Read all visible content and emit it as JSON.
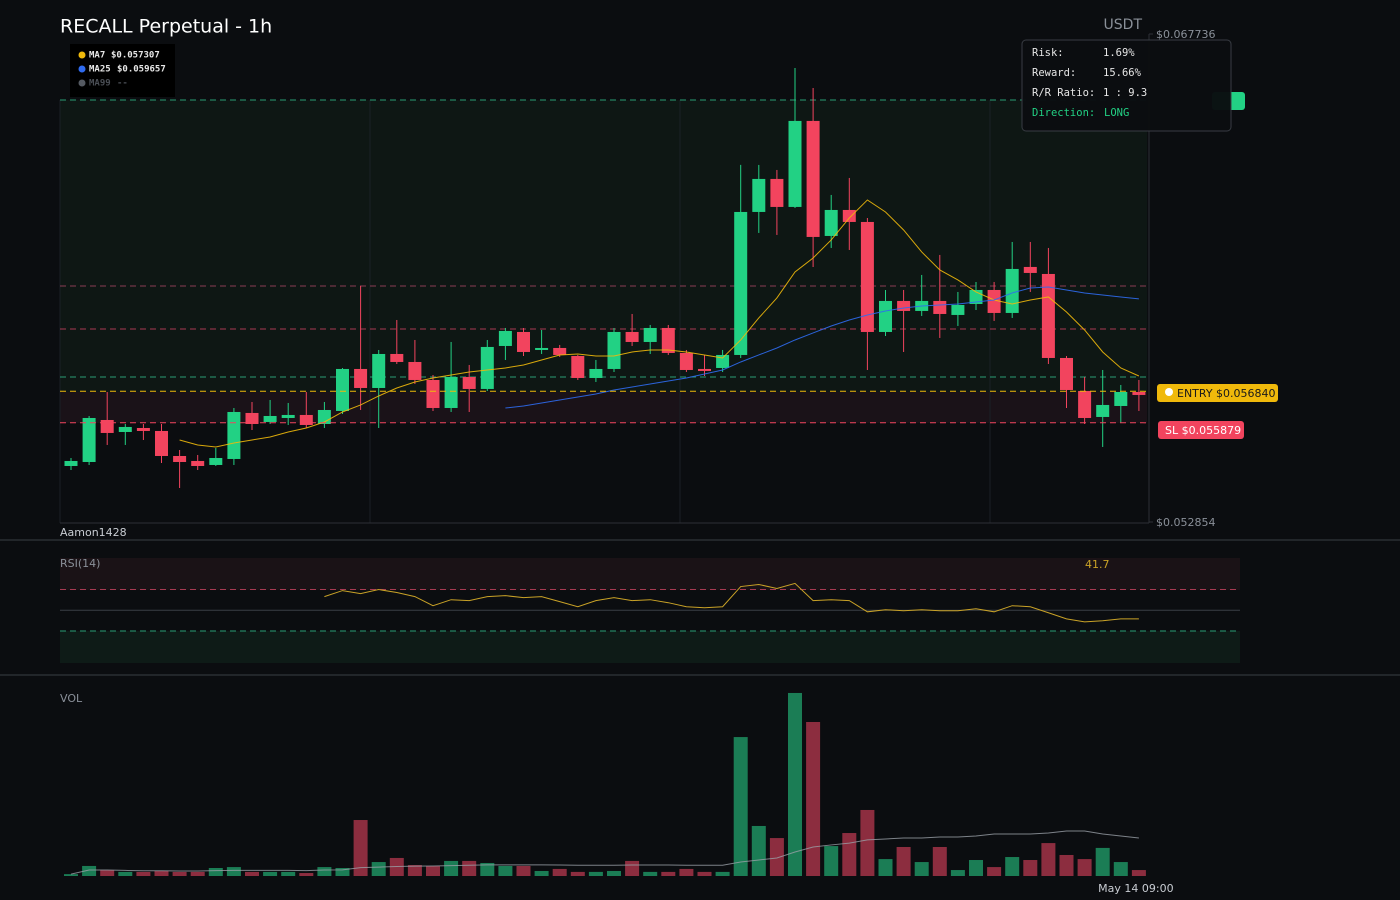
{
  "chart_data": [
    {
      "type": "candlestick",
      "title": "RECALL Perpetual - 1h",
      "unit": "USDT",
      "watermark": "Aamon1428",
      "ylim": [
        0.052854,
        0.067736
      ],
      "yticks": [
        {
          "value": 0.067736,
          "label": "$0.067736"
        },
        {
          "value": 0.052854,
          "label": "$0.052854"
        }
      ],
      "up_color": "#22d184",
      "down_color": "#f2445e",
      "open": [
        0.054562,
        0.054684,
        0.055965,
        0.055599,
        0.055721,
        0.05563,
        0.054867,
        0.054715,
        0.054593,
        0.054776,
        0.056179,
        0.055904,
        0.056026,
        0.056118,
        0.055843,
        0.05624,
        0.057521,
        0.056941,
        0.057978,
        0.057734,
        0.057185,
        0.056331,
        0.057277,
        0.056911,
        0.058222,
        0.058649,
        0.0581,
        0.058161,
        0.057917,
        0.057246,
        0.057521,
        0.058649,
        0.058344,
        0.058771,
        0.058009,
        0.057521,
        0.057551,
        0.057948,
        0.062309,
        0.063316,
        0.062462,
        0.065085,
        0.061577,
        0.06237,
        0.062004,
        0.058649,
        0.059595,
        0.05929,
        0.059595,
        0.059168,
        0.059503,
        0.05993,
        0.059229,
        0.060632,
        0.060418,
        0.057856,
        0.05685,
        0.056057,
        0.056392,
        0.056819
      ],
      "high": [
        0.054806,
        0.056087,
        0.056819,
        0.055843,
        0.055843,
        0.055843,
        0.05505,
        0.054898,
        0.055111,
        0.056331,
        0.056514,
        0.056575,
        0.056484,
        0.056819,
        0.056514,
        0.057551,
        0.060052,
        0.0581,
        0.059015,
        0.058405,
        0.057338,
        0.058344,
        0.057643,
        0.058405,
        0.058771,
        0.058771,
        0.05871,
        0.058253,
        0.057948,
        0.057795,
        0.058771,
        0.059198,
        0.058863,
        0.058863,
        0.0581,
        0.057948,
        0.0581,
        0.063743,
        0.063743,
        0.06359,
        0.066701,
        0.066091,
        0.062828,
        0.063346,
        0.062126,
        0.05993,
        0.05993,
        0.060388,
        0.060998,
        0.059869,
        0.060174,
        0.060174,
        0.061394,
        0.061394,
        0.061211,
        0.057917,
        0.057277,
        0.05749,
        0.057033,
        0.057185
      ],
      "low": [
        0.05444,
        0.054593,
        0.055203,
        0.055203,
        0.055355,
        0.054654,
        0.053891,
        0.05444,
        0.054562,
        0.054593,
        0.05566,
        0.055843,
        0.055813,
        0.055721,
        0.055721,
        0.056148,
        0.05627,
        0.055721,
        0.057673,
        0.057063,
        0.05624,
        0.056209,
        0.056209,
        0.05685,
        0.057795,
        0.057917,
        0.057978,
        0.057887,
        0.057185,
        0.057124,
        0.057429,
        0.058222,
        0.057978,
        0.057948,
        0.057429,
        0.057307,
        0.057429,
        0.057856,
        0.061669,
        0.061608,
        0.062431,
        0.060632,
        0.061211,
        0.06115,
        0.05749,
        0.058527,
        0.058039,
        0.059137,
        0.058466,
        0.058832,
        0.05932,
        0.058985,
        0.059076,
        0.059869,
        0.057673,
        0.056331,
        0.055843,
        0.055142,
        0.055874,
        0.05624
      ],
      "close": [
        0.054715,
        0.056026,
        0.055569,
        0.055752,
        0.05563,
        0.054867,
        0.054684,
        0.054562,
        0.054806,
        0.056209,
        0.055843,
        0.056087,
        0.056118,
        0.055813,
        0.05627,
        0.057521,
        0.056941,
        0.057978,
        0.057734,
        0.057185,
        0.056331,
        0.057277,
        0.056911,
        0.058192,
        0.05868,
        0.058039,
        0.058161,
        0.057948,
        0.057246,
        0.057521,
        0.058649,
        0.058344,
        0.058771,
        0.058009,
        0.05749,
        0.05746,
        0.057948,
        0.062309,
        0.063316,
        0.062462,
        0.065085,
        0.061547,
        0.06237,
        0.062004,
        0.058649,
        0.059595,
        0.05929,
        0.059595,
        0.059198,
        0.059473,
        0.05993,
        0.059229,
        0.060571,
        0.060449,
        0.057856,
        0.05688,
        0.056026,
        0.056423,
        0.056819,
        0.056728
      ],
      "series": [
        {
          "name": "MA7",
          "color": "#f0b90b",
          "legend_value": "$0.057307",
          "values": [
            null,
            null,
            null,
            null,
            null,
            null,
            0.055355,
            0.055203,
            0.055142,
            0.055264,
            0.055355,
            0.055447,
            0.055599,
            0.055721,
            0.055904,
            0.056209,
            0.056423,
            0.056697,
            0.056941,
            0.057124,
            0.057246,
            0.057338,
            0.057429,
            0.05749,
            0.057551,
            0.057643,
            0.057795,
            0.057948,
            0.057978,
            0.057917,
            0.057917,
            0.058039,
            0.0581,
            0.0581,
            0.058039,
            0.057948,
            0.057856,
            0.058405,
            0.059076,
            0.059686,
            0.060479,
            0.060906,
            0.061455,
            0.062126,
            0.062675,
            0.062309,
            0.06176,
            0.061089,
            0.06054,
            0.060235,
            0.059869,
            0.059625,
            0.059503,
            0.059625,
            0.059717,
            0.059259,
            0.05871,
            0.058039,
            0.057551,
            0.057307
          ]
        },
        {
          "name": "MA25",
          "color": "#2f6bf0",
          "legend_value": "$0.059657",
          "values": [
            null,
            null,
            null,
            null,
            null,
            null,
            null,
            null,
            null,
            null,
            null,
            null,
            null,
            null,
            null,
            null,
            null,
            null,
            null,
            null,
            null,
            null,
            null,
            null,
            0.056331,
            0.056392,
            0.056484,
            0.056575,
            0.056667,
            0.056758,
            0.05688,
            0.056972,
            0.057063,
            0.057155,
            0.057246,
            0.057368,
            0.05749,
            0.057734,
            0.057948,
            0.058161,
            0.058405,
            0.058619,
            0.058832,
            0.059015,
            0.059168,
            0.05929,
            0.059381,
            0.059442,
            0.059473,
            0.059503,
            0.059564,
            0.059625,
            0.059839,
            0.059991,
            0.060022,
            0.05993,
            0.059839,
            0.059778,
            0.059717,
            0.059657
          ]
        },
        {
          "name": "MA99",
          "color": "#555a62",
          "legend_value": "--",
          "values": [
            null,
            null,
            null,
            null,
            null,
            null,
            null,
            null,
            null,
            null,
            null,
            null,
            null,
            null,
            null,
            null,
            null,
            null,
            null,
            null,
            null,
            null,
            null,
            null,
            null,
            null,
            null,
            null,
            null,
            null,
            null,
            null,
            null,
            null,
            null,
            null,
            null,
            null,
            null,
            null,
            null,
            null,
            null,
            null,
            null,
            null,
            null,
            null,
            null,
            null,
            null,
            null,
            null,
            null,
            null,
            null,
            null,
            null,
            null,
            null
          ]
        }
      ],
      "entry": {
        "value": 0.05684,
        "label": "ENTRY $0.056840",
        "color": "#f0b90b"
      },
      "stop_loss": {
        "value": 0.055879,
        "label": "SL $0.055879",
        "color": "#f2445e"
      }
    },
    {
      "type": "line",
      "title": "RSI(14)",
      "color": "#c9a227",
      "ylim": [
        0,
        100
      ],
      "levels": [
        70,
        50,
        30
      ],
      "values": [
        null,
        null,
        null,
        null,
        null,
        null,
        null,
        null,
        null,
        null,
        null,
        null,
        null,
        null,
        63.2,
        69,
        66.1,
        70,
        67.1,
        63.2,
        54.4,
        60.2,
        59.3,
        63.2,
        64.1,
        62.2,
        63.2,
        58.3,
        53.4,
        59.3,
        62.2,
        59.3,
        60.2,
        57.3,
        53.4,
        52.4,
        53.4,
        72.9,
        74.9,
        71,
        75.9,
        59.3,
        60.2,
        59.3,
        48.5,
        50.5,
        49.5,
        50.5,
        49.5,
        49.5,
        51.5,
        48.5,
        54.4,
        53.4,
        47.6,
        41.7,
        38.8,
        39.8,
        41.7,
        41.7
      ]
    },
    {
      "type": "bar",
      "title": "VOL",
      "ylim": [
        0,
        100
      ],
      "up_color": "#1b7d55",
      "down_color": "#8c2d3f",
      "ma_color": "#9aa0a8",
      "categories": [
        null,
        null,
        null,
        null,
        null,
        null,
        null,
        null,
        null,
        null,
        null,
        null,
        null,
        null,
        null,
        null,
        null,
        null,
        null,
        null,
        null,
        null,
        null,
        null,
        null,
        null,
        null,
        null,
        null,
        null,
        null,
        null,
        null,
        null,
        null,
        null,
        null,
        null,
        null,
        null,
        null,
        null,
        null,
        null,
        null,
        null,
        null,
        null,
        null,
        null,
        null,
        null,
        null,
        null,
        null,
        null,
        null,
        null,
        null,
        "May 14 09:00"
      ],
      "values": [
        1,
        5.4,
        3.2,
        2.2,
        2.2,
        2.7,
        2.2,
        2.2,
        4.3,
        4.8,
        2.2,
        2.2,
        2.2,
        1.6,
        4.8,
        4.3,
        30.1,
        7.5,
        9.7,
        5.9,
        5.4,
        8.1,
        8.1,
        7,
        5.4,
        5.4,
        2.7,
        3.8,
        2.2,
        2.2,
        2.7,
        8.1,
        2.2,
        2.2,
        3.8,
        2.2,
        2.2,
        74.7,
        26.9,
        20.4,
        98.4,
        82.8,
        16.1,
        23.1,
        35.5,
        9.1,
        15.6,
        7.5,
        15.6,
        3.2,
        8.6,
        4.8,
        10.2,
        8.6,
        17.7,
        11.3,
        9.1,
        15.1,
        7.5,
        3.2
      ],
      "ma": [
        1,
        3.2,
        3.2,
        3,
        2.8,
        2.8,
        2.7,
        2.7,
        2.9,
        3,
        3,
        3,
        3,
        2.9,
        3.2,
        3.3,
        4.5,
        4.8,
        5.1,
        5.3,
        5.4,
        5.6,
        5.8,
        6,
        6,
        6,
        6,
        5.9,
        5.8,
        5.8,
        5.8,
        5.9,
        5.9,
        5.9,
        5.8,
        5.8,
        5.8,
        7.5,
        8.6,
        9.7,
        12.9,
        15.6,
        16.7,
        17.7,
        19.4,
        19.9,
        20.4,
        20.4,
        21,
        21,
        21.5,
        22.6,
        22.6,
        22.6,
        23.1,
        24.2,
        24.2,
        22.6,
        21.5,
        20.4
      ]
    }
  ],
  "tooltip": {
    "rows": [
      {
        "label": "Risk:",
        "value": "1.69%"
      },
      {
        "label": "Reward:",
        "value": "15.66%"
      },
      {
        "label": "R/R Ratio:",
        "value": "1 : 9.3"
      },
      {
        "label": "Direction:",
        "value": "LONG"
      }
    ]
  }
}
